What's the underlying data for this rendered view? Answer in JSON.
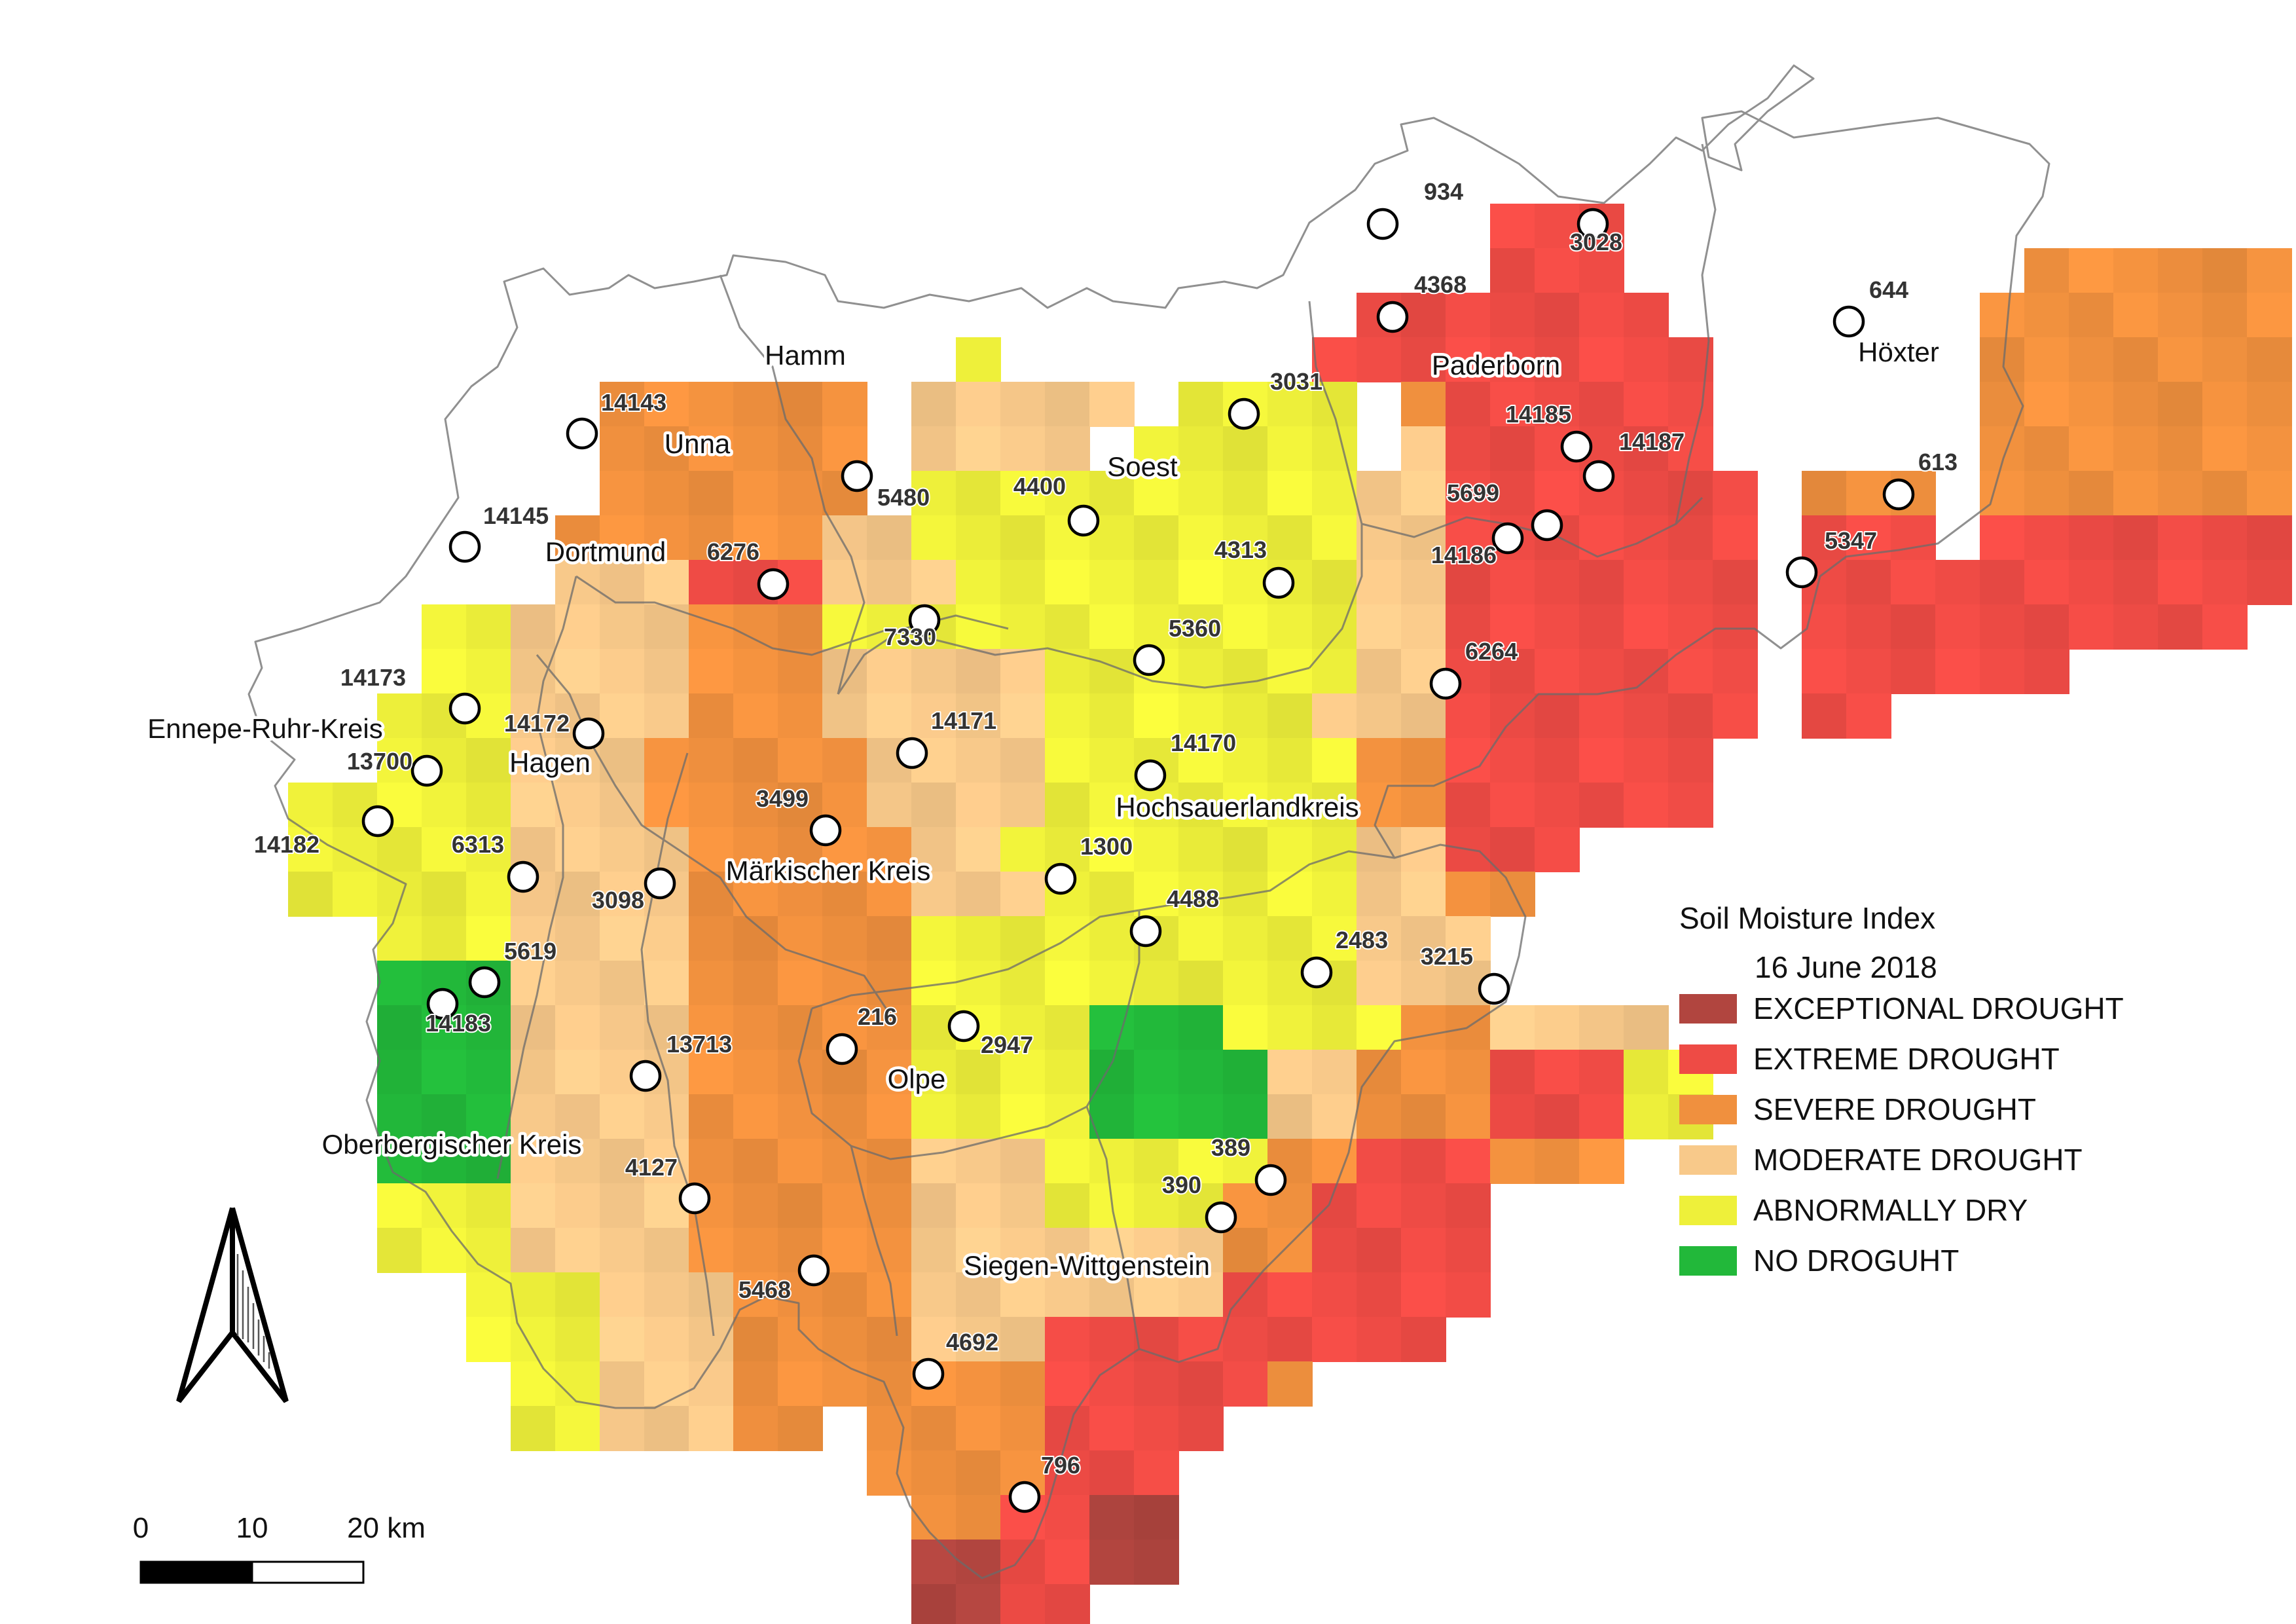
{
  "legend": {
    "title": "Soil Moisture Index",
    "date": "16 June 2018",
    "items": [
      {
        "label": "EXCEPTIONAL DROUGHT",
        "color": "#b1453f"
      },
      {
        "label": "EXTREME DROUGHT",
        "color": "#ee4b45"
      },
      {
        "label": "SEVERE DROUGHT",
        "color": "#f0903e"
      },
      {
        "label": "MODERATE DROUGHT",
        "color": "#f8c98a"
      },
      {
        "label": "ABNORMALLY DRY",
        "color": "#eef03a"
      },
      {
        "label": "NO DROGUHT",
        "color": "#22b83a"
      }
    ]
  },
  "scale_bar": {
    "labels": [
      "0",
      "10",
      "20 km"
    ]
  },
  "regions": [
    {
      "name": "Hamm"
    },
    {
      "name": "Unna"
    },
    {
      "name": "Dortmund"
    },
    {
      "name": "Soest"
    },
    {
      "name": "Paderborn"
    },
    {
      "name": "Höxter"
    },
    {
      "name": "Ennepe-Ruhr-Kreis"
    },
    {
      "name": "Hagen"
    },
    {
      "name": "Hochsauerlandkreis"
    },
    {
      "name": "Märkischer Kreis"
    },
    {
      "name": "Olpe"
    },
    {
      "name": "Oberbergischer Kreis"
    },
    {
      "name": "Siegen-Wittgenstein"
    }
  ],
  "stations": [
    {
      "id": "934"
    },
    {
      "id": "3028"
    },
    {
      "id": "4368"
    },
    {
      "id": "644"
    },
    {
      "id": "3031"
    },
    {
      "id": "14143"
    },
    {
      "id": "14185"
    },
    {
      "id": "14187"
    },
    {
      "id": "613"
    },
    {
      "id": "5480"
    },
    {
      "id": "4400"
    },
    {
      "id": "5699"
    },
    {
      "id": "14186"
    },
    {
      "id": "5347"
    },
    {
      "id": "14145"
    },
    {
      "id": "6276"
    },
    {
      "id": "4313"
    },
    {
      "id": "7330"
    },
    {
      "id": "5360"
    },
    {
      "id": "6264"
    },
    {
      "id": "14173"
    },
    {
      "id": "14172"
    },
    {
      "id": "14171"
    },
    {
      "id": "13700"
    },
    {
      "id": "14170"
    },
    {
      "id": "14182"
    },
    {
      "id": "3499"
    },
    {
      "id": "6313"
    },
    {
      "id": "1300"
    },
    {
      "id": "3098"
    },
    {
      "id": "4488"
    },
    {
      "id": "5619"
    },
    {
      "id": "2483"
    },
    {
      "id": "3215"
    },
    {
      "id": "14183"
    },
    {
      "id": "216"
    },
    {
      "id": "2947"
    },
    {
      "id": "13713"
    },
    {
      "id": "389"
    },
    {
      "id": "4127"
    },
    {
      "id": "390"
    },
    {
      "id": "5468"
    },
    {
      "id": "4692"
    },
    {
      "id": "796"
    }
  ]
}
